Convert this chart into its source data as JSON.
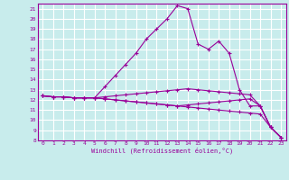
{
  "xlabel": "Windchill (Refroidissement éolien,°C)",
  "background_color": "#c8ecec",
  "grid_color": "#ffffff",
  "line_color": "#990099",
  "xlim": [
    -0.5,
    23.5
  ],
  "ylim": [
    8,
    21.5
  ],
  "xticks": [
    0,
    1,
    2,
    3,
    4,
    5,
    6,
    7,
    8,
    9,
    10,
    11,
    12,
    13,
    14,
    15,
    16,
    17,
    18,
    19,
    20,
    21,
    22,
    23
  ],
  "yticks": [
    8,
    9,
    10,
    11,
    12,
    13,
    14,
    15,
    16,
    17,
    18,
    19,
    20,
    21
  ],
  "series": [
    [
      12.4,
      12.3,
      12.3,
      12.2,
      12.2,
      12.2,
      13.3,
      14.4,
      15.5,
      16.6,
      18.0,
      19.0,
      20.0,
      21.3,
      21.0,
      17.5,
      17.0,
      17.8,
      16.6,
      13.0,
      11.4,
      11.4,
      9.3,
      8.3
    ],
    [
      12.4,
      12.3,
      12.3,
      12.2,
      12.2,
      12.2,
      12.1,
      12.0,
      11.9,
      11.8,
      11.7,
      11.6,
      11.5,
      11.4,
      11.3,
      11.2,
      11.1,
      11.0,
      10.9,
      10.8,
      10.7,
      10.6,
      9.3,
      8.3
    ],
    [
      12.4,
      12.3,
      12.3,
      12.2,
      12.2,
      12.2,
      12.1,
      12.0,
      11.9,
      11.8,
      11.7,
      11.6,
      11.5,
      11.4,
      11.5,
      11.6,
      11.7,
      11.8,
      11.9,
      12.0,
      12.1,
      11.4,
      9.3,
      8.3
    ],
    [
      12.4,
      12.3,
      12.3,
      12.2,
      12.2,
      12.2,
      12.3,
      12.4,
      12.5,
      12.6,
      12.7,
      12.8,
      12.9,
      13.0,
      13.1,
      13.0,
      12.9,
      12.8,
      12.7,
      12.6,
      12.5,
      11.4,
      9.3,
      8.3
    ]
  ]
}
